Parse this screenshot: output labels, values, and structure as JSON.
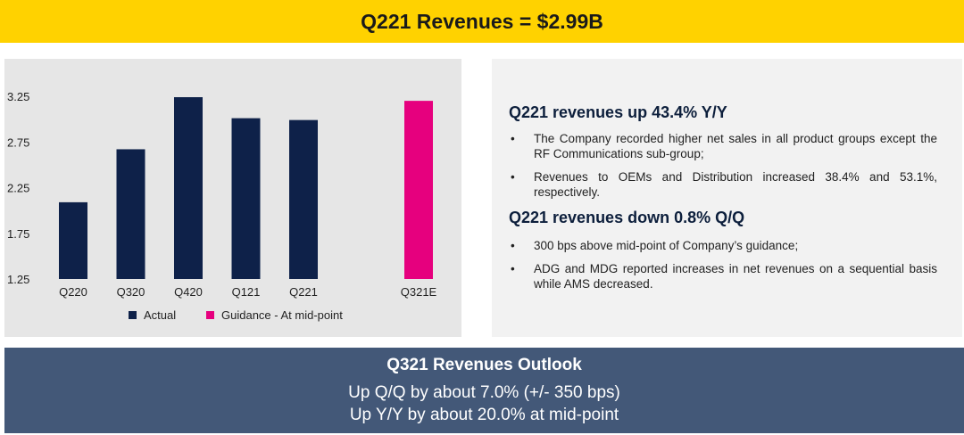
{
  "banner": {
    "title": "Q221 Revenues = $2.99B"
  },
  "chart_data": {
    "type": "bar",
    "categories": [
      "Q220",
      "Q320",
      "Q420",
      "Q121",
      "Q221",
      "",
      "Q321E"
    ],
    "series": [
      {
        "name": "Actual",
        "color": "#0e2149",
        "values": [
          2.09,
          2.67,
          3.24,
          3.01,
          2.99,
          null,
          null
        ]
      },
      {
        "name": "Guidance - At mid-point",
        "color": "#e6007e",
        "values": [
          null,
          null,
          null,
          null,
          null,
          null,
          3.2
        ]
      }
    ],
    "ylim": [
      1.25,
      3.25
    ],
    "yticks": [
      "3.25",
      "2.75",
      "2.25",
      "1.75",
      "1.25"
    ],
    "legend": "bottom",
    "grid": false
  },
  "highlights": {
    "heading1": "Q221 revenues up 43.4% Y/Y",
    "bullets1": [
      "The Company recorded higher net sales in all product groups except the RF Communications sub-group;",
      "Revenues to OEMs and Distribution increased 38.4% and 53.1%, respectively."
    ],
    "heading2": "Q221 revenues down 0.8% Q/Q",
    "bullets2": [
      "300 bps above mid-point of Company’s guidance;",
      "ADG and MDG reported increases in net revenues on a sequential basis while AMS decreased."
    ],
    "bullet_symbol": "•"
  },
  "outlook": {
    "title": "Q321 Revenues Outlook",
    "line1": "Up Q/Q by about 7.0% (+/- 350 bps)",
    "line2": "Up Y/Y by about 20.0% at mid-point"
  }
}
